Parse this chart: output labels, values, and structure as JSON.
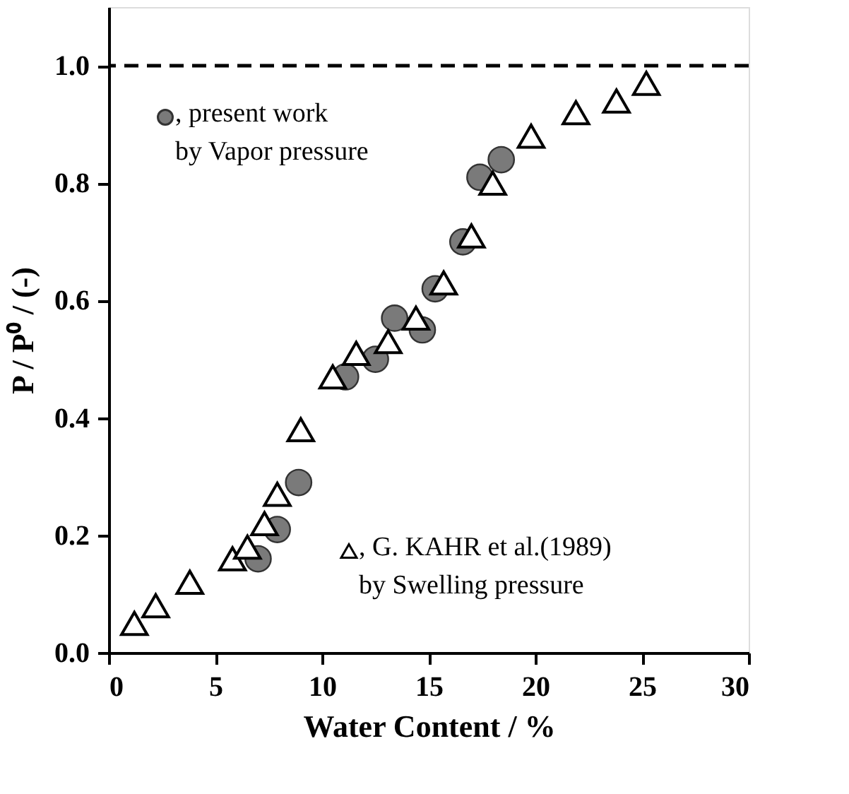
{
  "chart_data": {
    "type": "scatter",
    "xlabel": "Water Content / %",
    "ylabel": "P / P⁰ / (-)",
    "xlim": [
      0,
      30
    ],
    "xticks": [
      0,
      5,
      10,
      15,
      20,
      25,
      30
    ],
    "ylim": [
      0,
      1.1
    ],
    "yticks": [
      {
        "value": 0,
        "label": "0.0"
      },
      {
        "value": 0.2,
        "label": "0.2"
      },
      {
        "value": 0.4,
        "label": "0.4"
      },
      {
        "value": 0.6,
        "label": "0.6"
      },
      {
        "value": 0.8,
        "label": "0.8"
      },
      {
        "value": 1.0,
        "label": "1.0"
      }
    ],
    "grid": false,
    "legend": "left",
    "ref_lines": [
      {
        "axis": "y",
        "value": 1.0,
        "line_style": "dashed",
        "color": "#000000"
      }
    ],
    "series": [
      {
        "name": ", present work\nby Vapor pressure",
        "color": "#7a7a7a",
        "marker": "circle",
        "x": [
          7.0,
          7.9,
          8.9,
          11.1,
          12.5,
          13.4,
          14.7,
          15.3,
          16.6,
          17.4,
          18.4
        ],
        "values": [
          0.16,
          0.21,
          0.29,
          0.47,
          0.5,
          0.57,
          0.55,
          0.62,
          0.7,
          0.81,
          0.84
        ]
      },
      {
        "name": ", G. KAHR et al.(1989)\nby Swelling pressure",
        "color": "#000000",
        "marker": "triangle",
        "x": [
          1.2,
          2.2,
          3.8,
          5.8,
          6.5,
          7.3,
          7.9,
          9.0,
          10.5,
          11.6,
          13.1,
          14.4,
          15.7,
          17.0,
          18.0,
          19.8,
          21.9,
          23.8,
          25.2
        ],
        "values": [
          0.05,
          0.08,
          0.12,
          0.16,
          0.18,
          0.22,
          0.27,
          0.38,
          0.47,
          0.51,
          0.53,
          0.57,
          0.63,
          0.71,
          0.8,
          0.88,
          0.92,
          0.94,
          0.97
        ]
      }
    ]
  }
}
